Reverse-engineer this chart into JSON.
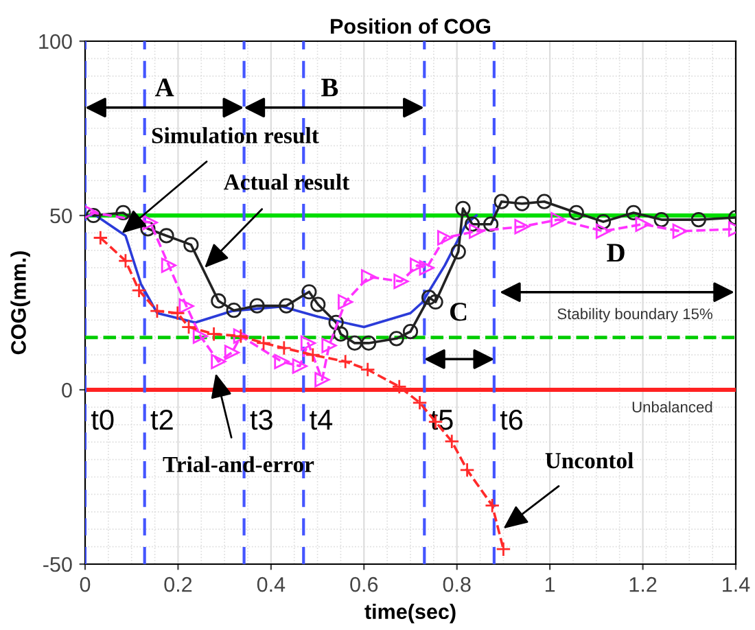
{
  "chart_data": {
    "type": "line",
    "title": "Position of COG",
    "xlabel": "time(sec)",
    "ylabel": "COG(mm.)",
    "xlim": [
      0,
      1.4
    ],
    "xticks": [
      0,
      0.2,
      0.4,
      0.6,
      0.8,
      1,
      1.2,
      1.4
    ],
    "ylim": [
      -50,
      100
    ],
    "yticks": [
      -50,
      0,
      50,
      100
    ],
    "grid": true,
    "legend": false,
    "series": [
      {
        "color": "#2b3bd9",
        "marker": "none",
        "line_style": "solid",
        "x": [
          0,
          0.023,
          0.087,
          0.12,
          0.155,
          0.237,
          0.316,
          0.423,
          0.5,
          0.6,
          0.7,
          0.725,
          0.774,
          0.82,
          0.842
        ],
        "values": [
          50,
          50,
          44.2,
          30.4,
          22,
          19.3,
          22.6,
          23.9,
          21,
          18,
          22,
          25,
          35.7,
          47.6,
          50
        ]
      },
      {
        "color": "#222222",
        "marker": "circle",
        "line_style": "solid",
        "x": [
          0.018,
          0.082,
          0.135,
          0.175,
          0.228,
          0.287,
          0.32,
          0.37,
          0.433,
          0.482,
          0.501,
          0.54,
          0.55,
          0.58,
          0.61,
          0.67,
          0.7,
          0.74,
          0.754,
          0.803,
          0.813,
          0.833,
          0.873,
          0.896,
          0.94,
          0.988,
          1.057,
          1.115,
          1.18,
          1.24,
          1.32,
          1.4
        ],
        "values": [
          50,
          50.8,
          46.2,
          44.2,
          41.6,
          25.5,
          22.8,
          24.1,
          24.1,
          28.1,
          24.5,
          19.3,
          16,
          13.4,
          13.4,
          14.7,
          16.7,
          26.5,
          25.2,
          39.6,
          52,
          47.5,
          47.5,
          54,
          53.4,
          54,
          50.8,
          48.2,
          50.8,
          48.8,
          48.8,
          49.4
        ]
      },
      {
        "color": "#ff33ff",
        "marker": "triangle",
        "line_style": "dashed",
        "x": [
          0.01,
          0.14,
          0.18,
          0.218,
          0.248,
          0.287,
          0.316,
          0.335,
          0.423,
          0.462,
          0.48,
          0.51,
          0.525,
          0.56,
          0.61,
          0.68,
          0.715,
          0.735,
          0.774,
          0.842,
          0.94,
          1.018,
          1.115,
          1.2,
          1.28,
          1.4
        ],
        "values": [
          51,
          48,
          35.7,
          24,
          15.4,
          8.1,
          10.7,
          15.4,
          8.1,
          6.8,
          13.4,
          2.9,
          12.7,
          25.2,
          32.4,
          31.1,
          35.7,
          35,
          43.6,
          45.5,
          46.8,
          48.8,
          45.5,
          47.5,
          45.5,
          46.1
        ]
      },
      {
        "color": "#ff2a2a",
        "marker": "cross",
        "line_style": "dashed",
        "x": [
          0.033,
          0.087,
          0.116,
          0.155,
          0.199,
          0.223,
          0.277,
          0.335,
          0.384,
          0.428,
          0.49,
          0.56,
          0.608,
          0.676,
          0.72,
          0.754,
          0.789,
          0.822,
          0.876,
          0.9
        ],
        "values": [
          43.6,
          37,
          28.5,
          22.6,
          22,
          18,
          16,
          15.4,
          13.4,
          12,
          10,
          8.1,
          5.8,
          0.9,
          -3.7,
          -9.2,
          -14.8,
          -23,
          -33.2,
          -45.7
        ]
      }
    ],
    "ref_lines": [
      {
        "axis": "y",
        "value": 50,
        "label": null,
        "color": "#00dd00",
        "line_style": "solid"
      },
      {
        "axis": "y",
        "value": 15,
        "label": "Stability boundary 15%",
        "color": "#00cc00",
        "line_style": "dashed"
      },
      {
        "axis": "y",
        "value": 0,
        "label": "Unbalanced",
        "color": "#ff2222",
        "line_style": "solid"
      },
      {
        "axis": "x",
        "value": 0,
        "label": "t0",
        "color": "#4455ff",
        "line_style": "dashed"
      },
      {
        "axis": "x",
        "value": 0.128,
        "label": "t2",
        "color": "#4455ff",
        "line_style": "dashed"
      },
      {
        "axis": "x",
        "value": 0.342,
        "label": "t3",
        "color": "#4455ff",
        "line_style": "dashed"
      },
      {
        "axis": "x",
        "value": 0.47,
        "label": "t4",
        "color": "#4455ff",
        "line_style": "dashed"
      },
      {
        "axis": "x",
        "value": 0.73,
        "label": "t5",
        "color": "#4455ff",
        "line_style": "dashed"
      },
      {
        "axis": "x",
        "value": 0.88,
        "label": "t6",
        "color": "#4455ff",
        "line_style": "dashed"
      }
    ],
    "annotations": [
      "A",
      "B",
      "C",
      "D",
      {
        "text": "Simulation result",
        "x": 0.079,
        "y": 44.9
      },
      {
        "text": "Actual result",
        "x": 0.257,
        "y": 35
      },
      {
        "text": "Trial-and-error",
        "x": 0.281,
        "y": 4.7
      },
      {
        "text": "Uncontol",
        "x": 0.9,
        "y": -39.8
      }
    ]
  }
}
